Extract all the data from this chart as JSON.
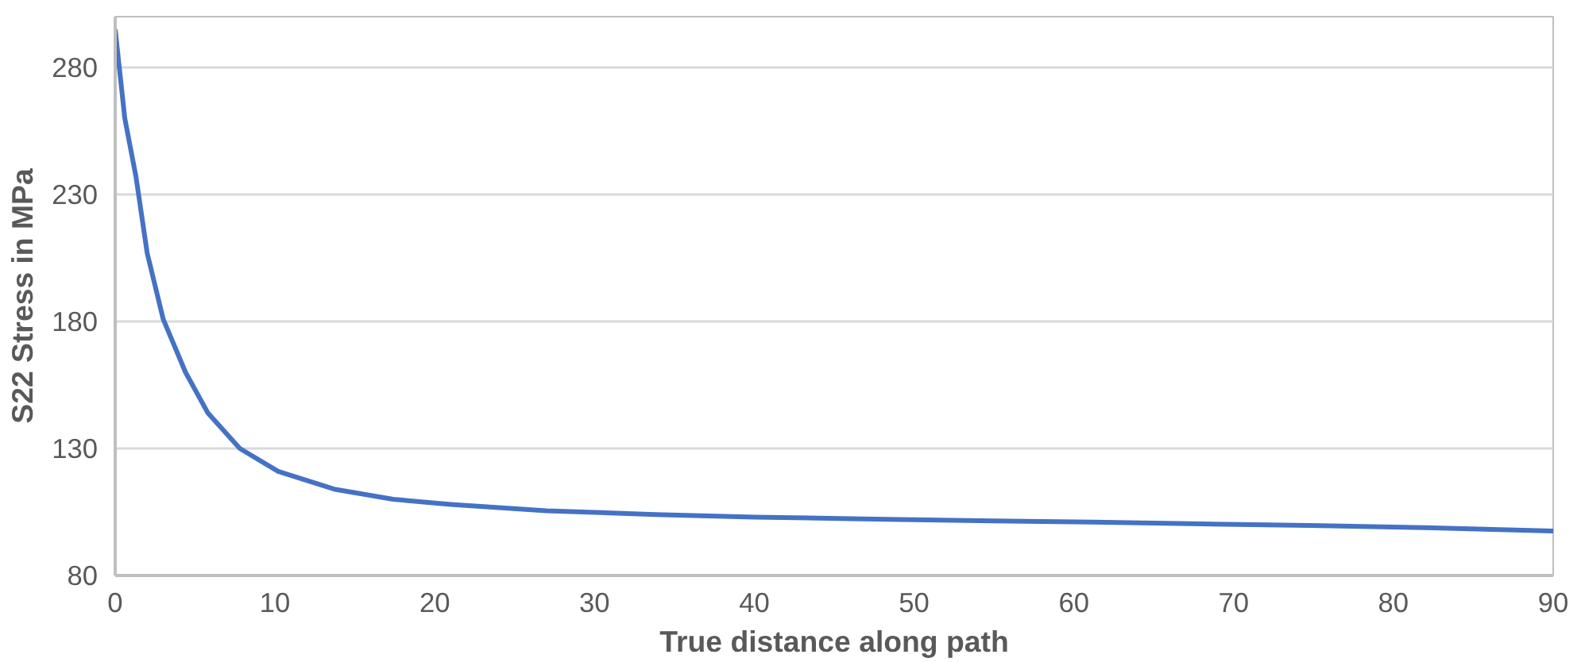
{
  "chart_data": {
    "type": "line",
    "xlabel": "True distance along path",
    "ylabel": "S22 Stress in MPa",
    "x": [
      0,
      0.6,
      1.3,
      2,
      3,
      4.4,
      5.8,
      7.8,
      10.2,
      13.7,
      17.4,
      21,
      27,
      33.8,
      40,
      47.5,
      55,
      61.2,
      68,
      74.8,
      82,
      90
    ],
    "series": [
      {
        "color": "#4472c4",
        "values": [
          295,
          260,
          237,
          207,
          181,
          160,
          144,
          130,
          121,
          114,
          110,
          108,
          105.5,
          104,
          103,
          102.2,
          101.5,
          101,
          100.3,
          99.7,
          98.8,
          97.5
        ]
      }
    ],
    "xlim": [
      0,
      90
    ],
    "ylim": [
      80,
      300
    ],
    "xticks": [
      0,
      10,
      20,
      30,
      40,
      50,
      60,
      70,
      80,
      90
    ],
    "yticks": [
      80,
      130,
      180,
      230,
      280
    ],
    "grid": "y",
    "marker": "none",
    "line_style": "solid"
  }
}
